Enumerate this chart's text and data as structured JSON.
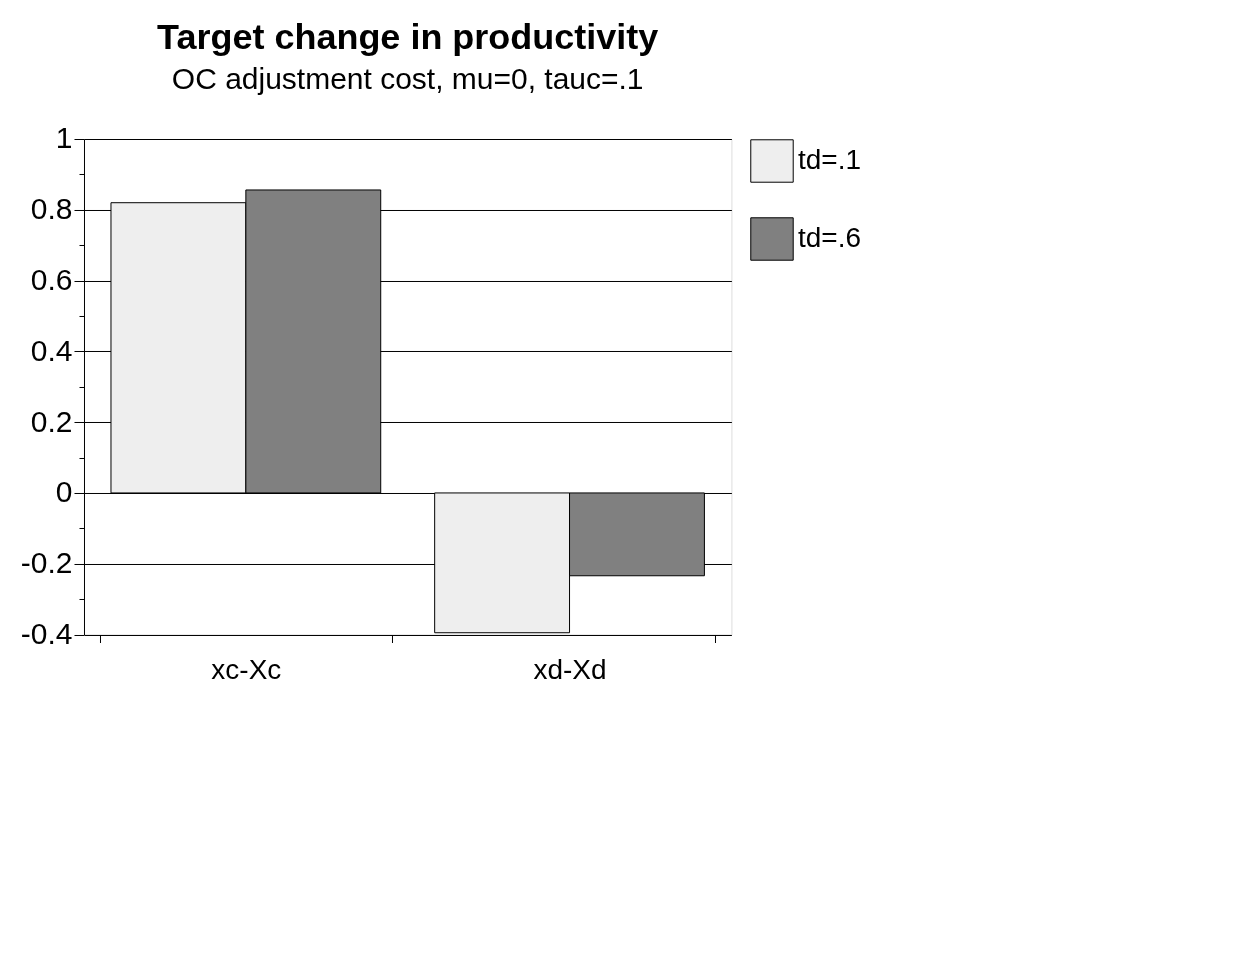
{
  "chart_data": {
    "type": "bar",
    "title": "Target change in productivity",
    "subtitle": "OC adjustment cost, mu=0, tauc=.1",
    "categories": [
      "xc-Xc",
      "xd-Xd"
    ],
    "series": [
      {
        "name": "td=.1",
        "color": "#eeeeee",
        "values": [
          0.82,
          -0.395
        ]
      },
      {
        "name": "td=.6",
        "color": "#808080",
        "values": [
          0.856,
          -0.234
        ]
      }
    ],
    "ylim": [
      -0.4,
      1
    ],
    "yticks": [
      -0.4,
      {
        "value": -0.3,
        "label": null
      },
      -0.2,
      {
        "value": -0.1,
        "label": null
      },
      0,
      {
        "value": 0.1,
        "label": null
      },
      0.2,
      {
        "value": 0.3,
        "label": null
      },
      0.4,
      {
        "value": 0.5,
        "label": null
      },
      0.6,
      {
        "value": 0.7,
        "label": null
      },
      0.8,
      {
        "value": 0.9,
        "label": null
      },
      1
    ],
    "grid": "y",
    "legend": "right"
  }
}
